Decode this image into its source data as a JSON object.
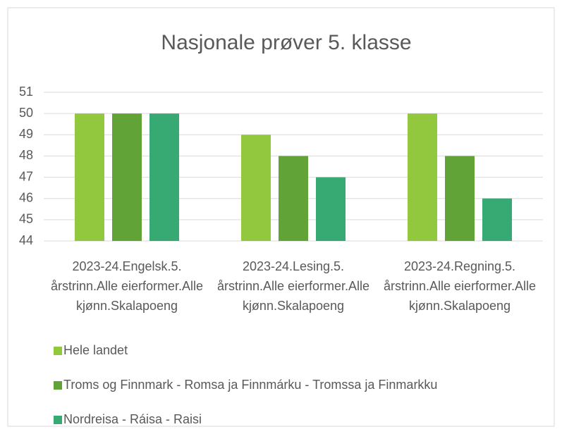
{
  "chart_data": {
    "type": "bar",
    "title": "Nasjonale prøver 5. klasse",
    "categories": [
      "2023-24.Engelsk.5. årstrinn.Alle eierformer.Alle kjønn.Skalapoeng",
      "2023-24.Lesing.5. årstrinn.Alle eierformer.Alle kjønn.Skalapoeng",
      "2023-24.Regning.5. årstrinn.Alle eierformer.Alle kjønn.Skalapoeng"
    ],
    "series": [
      {
        "name": "Hele landet",
        "color": "#92c83e",
        "values": [
          50,
          49,
          50
        ]
      },
      {
        "name": "Troms og Finnmark - Romsa ja Finnmárku - Tromssa ja Finmarkku",
        "color": "#62a338",
        "values": [
          50,
          48,
          48
        ]
      },
      {
        "name": "Nordreisa - Ráisa - Raisi",
        "color": "#36aa72",
        "values": [
          50,
          47,
          46
        ]
      }
    ],
    "ylim": [
      44,
      51
    ],
    "yticks": [
      44,
      45,
      46,
      47,
      48,
      49,
      50,
      51
    ],
    "grid": true,
    "legend": "bottom"
  }
}
